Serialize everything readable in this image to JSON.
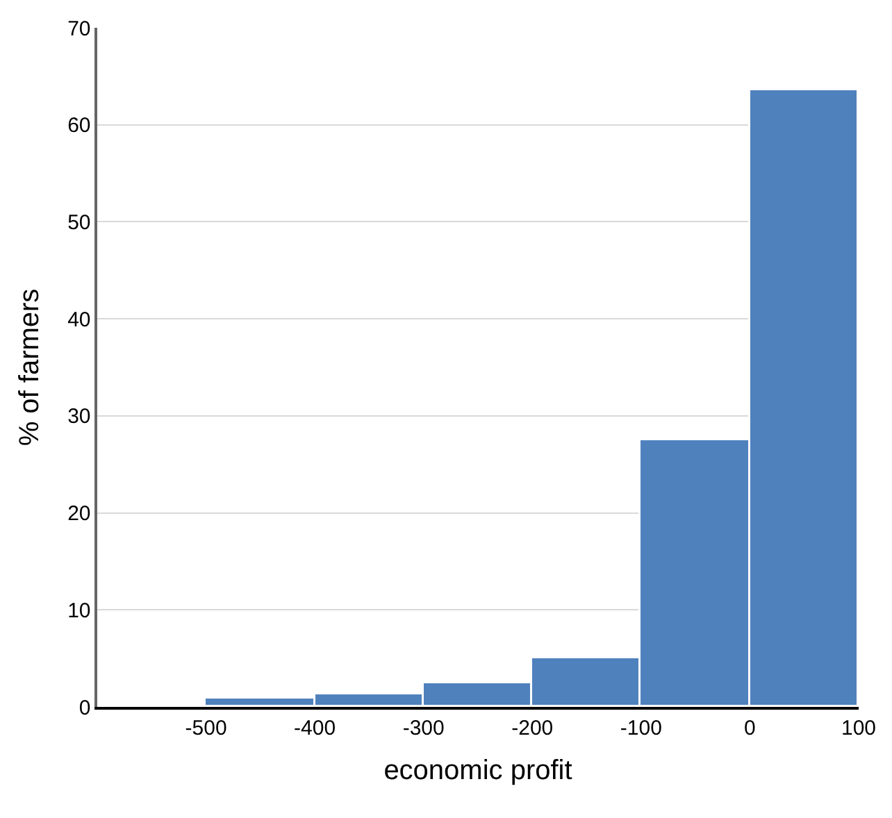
{
  "chart_data": {
    "type": "histogram",
    "xlabel": "economic profit",
    "ylabel": "% of farmers",
    "bins": [
      -500,
      -400,
      -300,
      -200,
      -100,
      0,
      100
    ],
    "values": [
      0.8,
      1.3,
      2.4,
      5,
      27.5,
      63.5
    ],
    "color": "#4f81bd",
    "xlim": [
      -600,
      100
    ],
    "xticks": [
      -500,
      -400,
      -300,
      -200,
      -100,
      0,
      100
    ],
    "ylim": [
      0,
      70
    ],
    "yticks": [
      0,
      10,
      20,
      30,
      40,
      50,
      60,
      70
    ],
    "grid": "y"
  }
}
